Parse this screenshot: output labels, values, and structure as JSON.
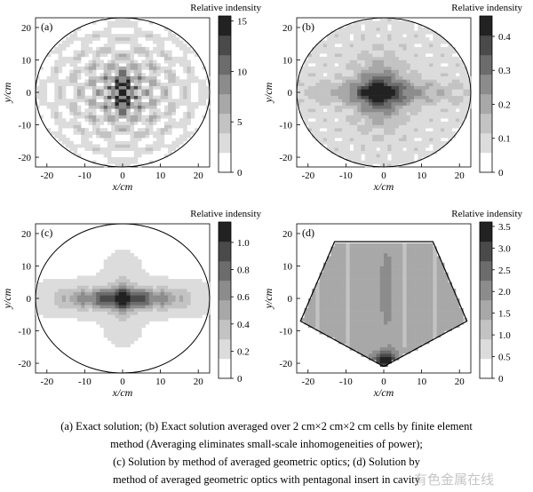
{
  "chart_data": [
    {
      "type": "heatmap",
      "panel_label": "(a)",
      "title": "Relative indensity",
      "xlabel": "x/cm",
      "ylabel": "y/cm",
      "xlim": [
        -23,
        23
      ],
      "ylim": [
        -23,
        23
      ],
      "xticks": [
        -20,
        -10,
        0,
        10,
        20
      ],
      "yticks": [
        -20,
        -10,
        0,
        10,
        20
      ],
      "boundary": "circle",
      "boundary_radius": 23,
      "colorbar": {
        "min": 0,
        "max": 15.5,
        "ticks": [
          0,
          5,
          10,
          15
        ],
        "levels": 8
      },
      "description_pattern": "fine interference rings",
      "peak_value": 15,
      "field": "rings"
    },
    {
      "type": "heatmap",
      "panel_label": "(b)",
      "title": "Relative indensity",
      "xlabel": "x/cm",
      "ylabel": "y/cm",
      "xlim": [
        -23,
        23
      ],
      "ylim": [
        -23,
        23
      ],
      "xticks": [
        -20,
        -10,
        0,
        10,
        20
      ],
      "yticks": [
        -20,
        -10,
        0,
        10,
        20
      ],
      "boundary": "circle",
      "boundary_radius": 23,
      "colorbar": {
        "min": 0,
        "max": 0.46,
        "ticks": [
          0,
          0.1,
          0.2,
          0.3,
          0.4
        ],
        "levels": 8
      },
      "peak_value": 0.44,
      "field": "blob"
    },
    {
      "type": "heatmap",
      "panel_label": "(c)",
      "title": "Relative indensity",
      "xlabel": "x/cm",
      "ylabel": "y/cm",
      "xlim": [
        -23,
        23
      ],
      "ylim": [
        -23,
        23
      ],
      "xticks": [
        -20,
        -10,
        0,
        10,
        20
      ],
      "yticks": [
        -20,
        -10,
        0,
        10,
        20
      ],
      "boundary": "circle",
      "boundary_radius": 23,
      "colorbar": {
        "min": 0,
        "max": 1.15,
        "ticks": [
          0,
          0.2,
          0.4,
          0.6,
          0.8,
          1.0
        ],
        "levels": 8
      },
      "peak_value": 1.1,
      "field": "band"
    },
    {
      "type": "heatmap",
      "panel_label": "(d)",
      "title": "Relative indensity",
      "xlabel": "x/cm",
      "ylabel": "y/cm",
      "xlim": [
        -23,
        23
      ],
      "ylim": [
        -23,
        23
      ],
      "xticks": [
        -20,
        -10,
        0,
        10,
        20
      ],
      "yticks": [
        -20,
        -10,
        0,
        10,
        20
      ],
      "boundary": "pentagon",
      "pentagon_vertices": [
        [
          -13,
          17.5
        ],
        [
          13,
          17.5
        ],
        [
          22,
          -7
        ],
        [
          0,
          -21
        ],
        [
          -22,
          -7
        ]
      ],
      "colorbar": {
        "min": 0,
        "max": 3.6,
        "ticks": [
          0,
          0.5,
          1.0,
          1.5,
          2.0,
          2.5,
          3.0,
          3.5
        ],
        "levels": 8
      },
      "peak_value": 3.5,
      "field": "pentagon"
    }
  ],
  "caption": {
    "line1": "(a) Exact solution; (b) Exact solution averaged over 2 cm×2 cm×2 cm cells by finite element",
    "line2": "method (Averaging eliminates small-scale inhomogeneities of power);",
    "line3": "(c) Solution by method of averaged geometric optics; (d) Solution by",
    "line4": "method of averaged geometric optics with pentagonal insert in cavity"
  },
  "watermark": "有色金属在线"
}
